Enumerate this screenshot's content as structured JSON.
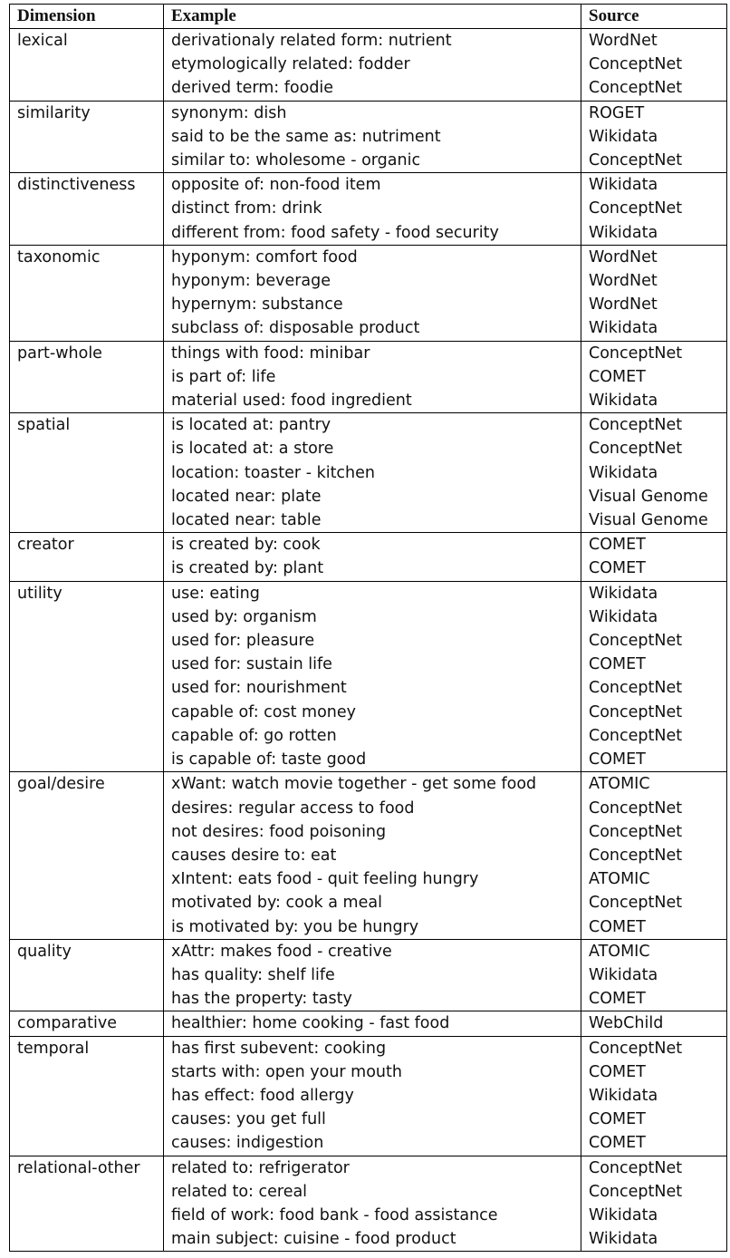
{
  "headers": {
    "dimension": "Dimension",
    "example": "Example",
    "source": "Source"
  },
  "groups": [
    {
      "dimension": "lexical",
      "rows": [
        {
          "example": "derivationaly related form: nutrient",
          "source": "WordNet"
        },
        {
          "example": "etymologically related: fodder",
          "source": "ConceptNet"
        },
        {
          "example": "derived term: foodie",
          "source": "ConceptNet"
        }
      ]
    },
    {
      "dimension": "similarity",
      "rows": [
        {
          "example": "synonym: dish",
          "source": "ROGET"
        },
        {
          "example": "said to be the same as: nutriment",
          "source": "Wikidata"
        },
        {
          "example": "similar to: wholesome - organic",
          "source": "ConceptNet"
        }
      ]
    },
    {
      "dimension": "distinctiveness",
      "rows": [
        {
          "example": "opposite of: non-food item",
          "source": "Wikidata"
        },
        {
          "example": "distinct from: drink",
          "source": "ConceptNet"
        },
        {
          "example": "different from: food safety - food security",
          "source": "Wikidata"
        }
      ]
    },
    {
      "dimension": "taxonomic",
      "rows": [
        {
          "example": "hyponym: comfort food",
          "source": "WordNet"
        },
        {
          "example": "hyponym: beverage",
          "source": "WordNet"
        },
        {
          "example": "hypernym: substance",
          "source": "WordNet"
        },
        {
          "example": "subclass of: disposable product",
          "source": "Wikidata"
        }
      ]
    },
    {
      "dimension": "part-whole",
      "rows": [
        {
          "example": "things with food: minibar",
          "source": "ConceptNet"
        },
        {
          "example": "is part of: life",
          "source": "COMET"
        },
        {
          "example": "material used: food ingredient",
          "source": "Wikidata"
        }
      ]
    },
    {
      "dimension": "spatial",
      "rows": [
        {
          "example": "is located at: pantry",
          "source": "ConceptNet"
        },
        {
          "example": "is located at: a store",
          "source": "ConceptNet"
        },
        {
          "example": "location: toaster - kitchen",
          "source": "Wikidata"
        },
        {
          "example": "located near: plate",
          "source": "Visual Genome"
        },
        {
          "example": "located near: table",
          "source": "Visual Genome"
        }
      ]
    },
    {
      "dimension": "creator",
      "rows": [
        {
          "example": "is created by: cook",
          "source": "COMET"
        },
        {
          "example": "is created by: plant",
          "source": "COMET"
        }
      ]
    },
    {
      "dimension": "utility",
      "rows": [
        {
          "example": "use: eating",
          "source": "Wikidata"
        },
        {
          "example": "used by: organism",
          "source": "Wikidata"
        },
        {
          "example": "used for: pleasure",
          "source": "ConceptNet"
        },
        {
          "example": "used for: sustain life",
          "source": "COMET"
        },
        {
          "example": "used for: nourishment",
          "source": "ConceptNet"
        },
        {
          "example": "capable of: cost money",
          "source": "ConceptNet"
        },
        {
          "example": "capable of: go rotten",
          "source": "ConceptNet"
        },
        {
          "example": "is capable of: taste good",
          "source": "COMET"
        }
      ]
    },
    {
      "dimension": "goal/desire",
      "rows": [
        {
          "example": "xWant: watch movie together - get some food",
          "source": "ATOMIC"
        },
        {
          "example": "desires: regular access to food",
          "source": "ConceptNet"
        },
        {
          "example": "not desires: food poisoning",
          "source": "ConceptNet"
        },
        {
          "example": "causes desire to: eat",
          "source": "ConceptNet"
        },
        {
          "example": "xIntent: eats food - quit feeling hungry",
          "source": "ATOMIC"
        },
        {
          "example": "motivated by: cook a meal",
          "source": "ConceptNet"
        },
        {
          "example": "is motivated by: you be hungry",
          "source": "COMET"
        }
      ]
    },
    {
      "dimension": "quality",
      "rows": [
        {
          "example": "xAttr: makes food - creative",
          "source": "ATOMIC"
        },
        {
          "example": "has quality: shelf life",
          "source": "Wikidata"
        },
        {
          "example": "has the property: tasty",
          "source": "COMET"
        }
      ]
    },
    {
      "dimension": "comparative",
      "rows": [
        {
          "example": "healthier: home cooking - fast food",
          "source": "WebChild"
        }
      ]
    },
    {
      "dimension": "temporal",
      "rows": [
        {
          "example": "has first subevent: cooking",
          "source": "ConceptNet"
        },
        {
          "example": "starts with: open your mouth",
          "source": "COMET"
        },
        {
          "example": "has effect: food allergy",
          "source": "Wikidata"
        },
        {
          "example": "causes: you get full",
          "source": "COMET"
        },
        {
          "example": "causes: indigestion",
          "source": "COMET"
        }
      ]
    },
    {
      "dimension": "relational-other",
      "rows": [
        {
          "example": "related to: refrigerator",
          "source": "ConceptNet"
        },
        {
          "example": "related to: cereal",
          "source": "ConceptNet"
        },
        {
          "example": "field of work: food bank - food assistance",
          "source": "Wikidata"
        },
        {
          "example": "main subject: cuisine - food product",
          "source": "Wikidata"
        }
      ]
    }
  ]
}
